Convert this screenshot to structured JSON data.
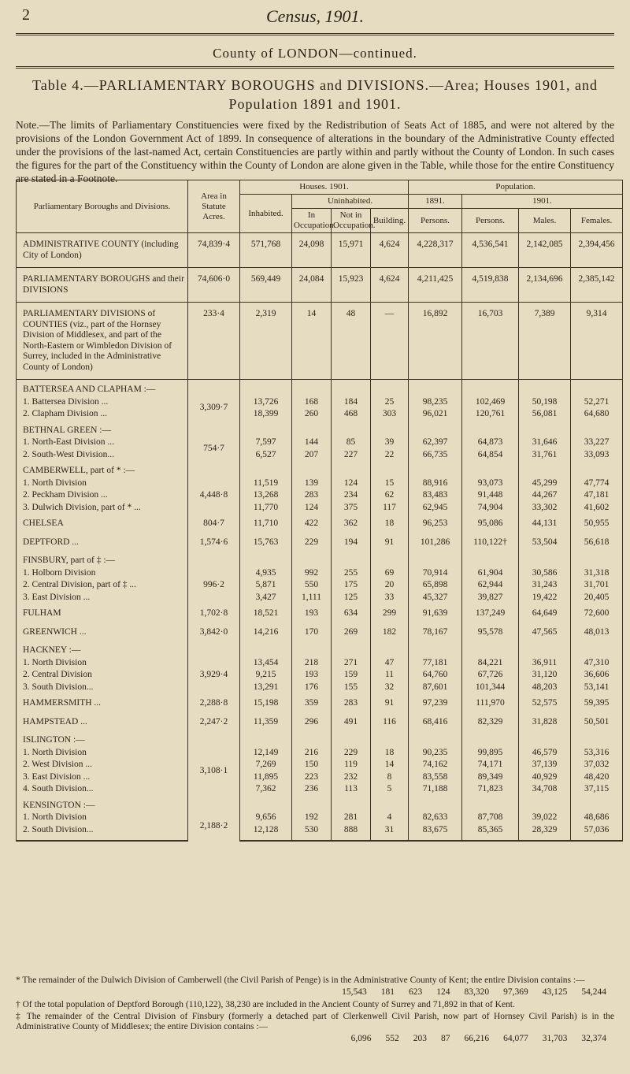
{
  "header": {
    "page_number": "2",
    "running_title": "Census, 1901.",
    "county": "County of LONDON—continued.",
    "table_title": "Table 4.—PARLIAMENTARY BOROUGHS and DIVISIONS.—Area; Houses 1901, and Population 1891 and 1901.",
    "note": "Note.—The limits of Parliamentary Constituencies were fixed by the Redistribution of Seats Act of 1885, and were not altered by the provisions of the London Government Act of 1899. In consequence of alterations in the boundary of the Administrative County effected under the provisions of the last-named Act, certain Constituencies are partly within and partly without the County of London. In such cases the figures for the part of the Constituency within the County of London are alone given in the Table, while those for the entire Constituency are stated in a Footnote."
  },
  "table": {
    "column_headers": {
      "name": "Parliamentary Boroughs and Divisions.",
      "area": "Area in Statute Acres.",
      "houses": "Houses. 1901.",
      "inhabited": "Inhabited.",
      "uninhabited": "Uninhabited.",
      "in_occupation": "In Occupation.",
      "not_in_occupation": "Not in Occupation.",
      "building": "Building.",
      "population": "Population.",
      "year_1891": "1891.",
      "year_1901": "1901.",
      "persons_1891": "Persons.",
      "persons_1901": "Persons.",
      "males": "Males.",
      "females": "Females."
    },
    "sections": [
      {
        "name": "ADMINISTRATIVE COUNTY (including City of London)",
        "area": "74,839·4",
        "values": [
          "571,768",
          "24,098",
          "15,971",
          "4,624",
          "4,228,317",
          "4,536,541",
          "2,142,085",
          "2,394,456"
        ]
      },
      {
        "name": "PARLIAMENTARY BOROUGHS and their DIVISIONS",
        "area": "74,606·0",
        "values": [
          "569,449",
          "24,084",
          "15,923",
          "4,624",
          "4,211,425",
          "4,519,838",
          "2,134,696",
          "2,385,142"
        ]
      },
      {
        "name": "PARLIAMENTARY DIVISIONS of COUNTIES (viz., part of the Hornsey Division of Middlesex, and part of the North-Eastern or Wimbledon Division of Surrey, included in the Administrative County of London)",
        "area": "233·4",
        "values": [
          "2,319",
          "14",
          "48",
          "—",
          "16,892",
          "16,703",
          "7,389",
          "9,314"
        ]
      },
      {
        "name": "BATTERSEA AND CLAPHAM :—",
        "area": "3,309·7",
        "rows": [
          {
            "name": "1. Battersea Division ...",
            "values": [
              "13,726",
              "168",
              "184",
              "25",
              "98,235",
              "102,469",
              "50,198",
              "52,271"
            ]
          },
          {
            "name": "2. Clapham Division ...",
            "values": [
              "18,399",
              "260",
              "468",
              "303",
              "96,021",
              "120,761",
              "56,081",
              "64,680"
            ]
          }
        ]
      },
      {
        "name": "BETHNAL GREEN :—",
        "area": "754·7",
        "rows": [
          {
            "name": "1. North-East Division ...",
            "values": [
              "7,597",
              "144",
              "85",
              "39",
              "62,397",
              "64,873",
              "31,646",
              "33,227"
            ]
          },
          {
            "name": "2. South-West Division...",
            "values": [
              "6,527",
              "207",
              "227",
              "22",
              "66,735",
              "64,854",
              "31,761",
              "33,093"
            ]
          }
        ]
      },
      {
        "name": "CAMBERWELL, part of * :—",
        "area": "4,448·8",
        "rows": [
          {
            "name": "1. North Division",
            "values": [
              "11,519",
              "139",
              "124",
              "15",
              "88,916",
              "93,073",
              "45,299",
              "47,774"
            ]
          },
          {
            "name": "2. Peckham Division ...",
            "values": [
              "13,268",
              "283",
              "234",
              "62",
              "83,483",
              "91,448",
              "44,267",
              "47,181"
            ]
          },
          {
            "name": "3. Dulwich Division, part of * ...",
            "values": [
              "11,770",
              "124",
              "375",
              "117",
              "62,945",
              "74,904",
              "33,302",
              "41,602"
            ]
          }
        ]
      },
      {
        "name": "CHELSEA",
        "area": "804·7",
        "values": [
          "11,710",
          "422",
          "362",
          "18",
          "96,253",
          "95,086",
          "44,131",
          "50,955"
        ]
      },
      {
        "name": "DEPTFORD ...",
        "area": "1,574·6",
        "values": [
          "15,763",
          "229",
          "194",
          "91",
          "101,286",
          "110,122†",
          "53,504",
          "56,618"
        ]
      },
      {
        "name": "FINSBURY, part of ‡ :—",
        "area": "996·2",
        "rows": [
          {
            "name": "1. Holborn Division",
            "values": [
              "4,935",
              "992",
              "255",
              "69",
              "70,914",
              "61,904",
              "30,586",
              "31,318"
            ]
          },
          {
            "name": "2. Central Division, part of ‡ ...",
            "values": [
              "5,871",
              "550",
              "175",
              "20",
              "65,898",
              "62,944",
              "31,243",
              "31,701"
            ]
          },
          {
            "name": "3. East Division ...",
            "values": [
              "3,427",
              "1,111",
              "125",
              "33",
              "45,327",
              "39,827",
              "19,422",
              "20,405"
            ]
          }
        ]
      },
      {
        "name": "FULHAM",
        "area": "1,702·8",
        "values": [
          "18,521",
          "193",
          "634",
          "299",
          "91,639",
          "137,249",
          "64,649",
          "72,600"
        ]
      },
      {
        "name": "GREENWICH ...",
        "area": "3,842·0",
        "values": [
          "14,216",
          "170",
          "269",
          "182",
          "78,167",
          "95,578",
          "47,565",
          "48,013"
        ]
      },
      {
        "name": "HACKNEY :—",
        "area": "3,929·4",
        "rows": [
          {
            "name": "1. North Division",
            "values": [
              "13,454",
              "218",
              "271",
              "47",
              "77,181",
              "84,221",
              "36,911",
              "47,310"
            ]
          },
          {
            "name": "2. Central Division",
            "values": [
              "9,215",
              "193",
              "159",
              "11",
              "64,760",
              "67,726",
              "31,120",
              "36,606"
            ]
          },
          {
            "name": "3. South Division...",
            "values": [
              "13,291",
              "176",
              "155",
              "32",
              "87,601",
              "101,344",
              "48,203",
              "53,141"
            ]
          }
        ]
      },
      {
        "name": "HAMMERSMITH ...",
        "area": "2,288·8",
        "values": [
          "15,198",
          "359",
          "283",
          "91",
          "97,239",
          "111,970",
          "52,575",
          "59,395"
        ]
      },
      {
        "name": "HAMPSTEAD ...",
        "area": "2,247·2",
        "values": [
          "11,359",
          "296",
          "491",
          "116",
          "68,416",
          "82,329",
          "31,828",
          "50,501"
        ]
      },
      {
        "name": "ISLINGTON :—",
        "area": "3,108·1",
        "rows": [
          {
            "name": "1. North Division",
            "values": [
              "12,149",
              "216",
              "229",
              "18",
              "90,235",
              "99,895",
              "46,579",
              "53,316"
            ]
          },
          {
            "name": "2. West Division ...",
            "values": [
              "7,269",
              "150",
              "119",
              "14",
              "74,162",
              "74,171",
              "37,139",
              "37,032"
            ]
          },
          {
            "name": "3. East Division ...",
            "values": [
              "11,895",
              "223",
              "232",
              "8",
              "83,558",
              "89,349",
              "40,929",
              "48,420"
            ]
          },
          {
            "name": "4. South Division...",
            "values": [
              "7,362",
              "236",
              "113",
              "5",
              "71,188",
              "71,823",
              "34,708",
              "37,115"
            ]
          }
        ]
      },
      {
        "name": "KENSINGTON :—",
        "area": "2,188·2",
        "rows": [
          {
            "name": "1. North Division",
            "values": [
              "9,656",
              "192",
              "281",
              "4",
              "82,633",
              "87,708",
              "39,022",
              "48,686"
            ]
          },
          {
            "name": "2. South Division...",
            "values": [
              "12,128",
              "530",
              "888",
              "31",
              "83,675",
              "85,365",
              "28,329",
              "57,036"
            ]
          }
        ]
      }
    ]
  },
  "footnotes": [
    {
      "text": "* The remainder of the Dulwich Division of Camberwell (the Civil Parish of Penge) is in the Administrative County of Kent; the entire Division contains :—",
      "values": [
        "15,543",
        "181",
        "623",
        "124",
        "83,320",
        "97,369",
        "43,125",
        "54,244"
      ]
    },
    {
      "text": "† Of the total population of Deptford Borough (110,122), 38,230 are included in the Ancient County of Surrey and 71,892 in that of Kent."
    },
    {
      "text": "‡ The remainder of the Central Division of Finsbury (formerly a detached part of Clerkenwell Civil Parish, now part of Hornsey Civil Parish) is in the Administrative County of Middlesex; the entire Division contains :—",
      "values": [
        "6,096",
        "552",
        "203",
        "87",
        "66,216",
        "64,077",
        "31,703",
        "32,374"
      ]
    }
  ]
}
